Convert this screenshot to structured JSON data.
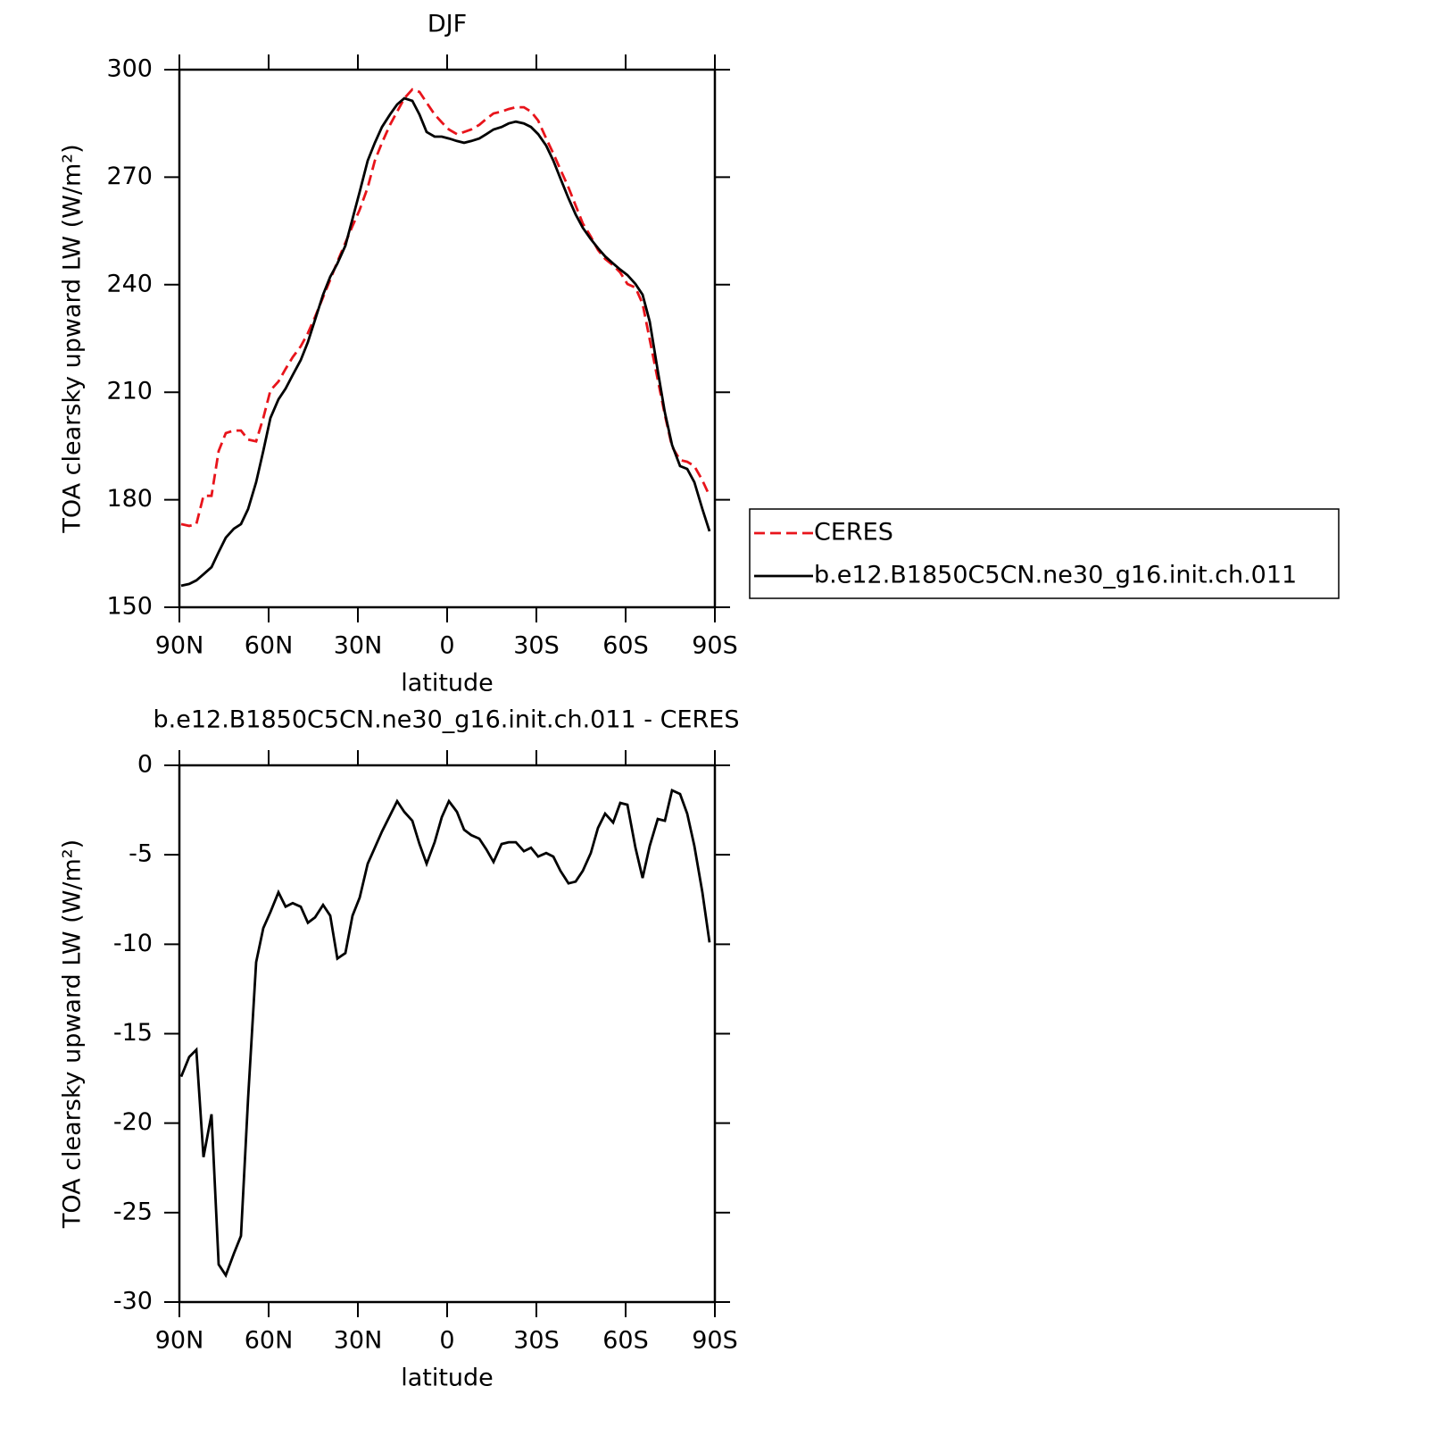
{
  "chart_data": [
    {
      "type": "line",
      "title": "DJF",
      "xlabel": "latitude",
      "ylabel": "TOA clearsky upward LW (W/m²)",
      "x": [
        89.4,
        86.7,
        84.3,
        81.9,
        79.2,
        76.8,
        74.4,
        71.7,
        69.3,
        66.9,
        64.2,
        61.8,
        59.4,
        56.7,
        54.3,
        51.9,
        49.2,
        46.8,
        44.4,
        41.7,
        39.3,
        36.9,
        34.2,
        31.8,
        29.4,
        26.7,
        24.3,
        21.9,
        19.2,
        16.8,
        14.4,
        11.7,
        9.3,
        6.9,
        4.2,
        1.8,
        -0.6,
        -3.3,
        -5.7,
        -8.1,
        -10.8,
        -13.2,
        -15.6,
        -18.3,
        -20.7,
        -23.1,
        -25.8,
        -28.2,
        -30.6,
        -33.3,
        -35.7,
        -38.1,
        -40.8,
        -43.2,
        -45.6,
        -48.3,
        -50.7,
        -53.1,
        -55.8,
        -58.2,
        -60.6,
        -63.3,
        -65.7,
        -68.1,
        -70.8,
        -73.2,
        -75.6,
        -78.3,
        -80.7,
        -83.1,
        -85.8,
        -88.2
      ],
      "series": [
        {
          "name": "CERES",
          "color": "#e8141b",
          "style": "dashed",
          "values": [
            173.2,
            172.7,
            173.2,
            181.1,
            181.1,
            193.6,
            198.6,
            199.3,
            199.3,
            196.8,
            196.3,
            202.8,
            210.5,
            213,
            216.5,
            219.8,
            222.8,
            226.5,
            231,
            236.5,
            241.4,
            246.4,
            251.7,
            256.4,
            260.9,
            267.1,
            274.6,
            279.6,
            284.6,
            288.3,
            292,
            294.5,
            293.8,
            290.8,
            287.5,
            285.3,
            283.3,
            282,
            282.6,
            283.3,
            284.6,
            286.3,
            287.8,
            288.3,
            289,
            289.5,
            289.5,
            288.3,
            285.8,
            280.8,
            276.6,
            272.1,
            267.1,
            262.1,
            257.1,
            253.4,
            249.7,
            247.2,
            245.4,
            243.4,
            240.2,
            239.2,
            234.7,
            224.7,
            213.5,
            203.6,
            194.8,
            191.1,
            190.6,
            189.4,
            185.4,
            181.1
          ]
        },
        {
          "name": "b.e12.B1850C5CN.ne30_g16.init.ch.011",
          "color": "#000000",
          "style": "solid",
          "values": [
            156,
            156.5,
            157.5,
            159.2,
            161.2,
            165.4,
            169.4,
            171.9,
            173.2,
            177.4,
            184.9,
            193.6,
            202.8,
            208,
            211,
            214.8,
            219,
            224,
            230.2,
            237.2,
            242.2,
            245.9,
            250.9,
            258.4,
            265.9,
            274.6,
            279.6,
            284,
            287.5,
            290.3,
            292,
            291.3,
            287.5,
            282.6,
            281.3,
            281.3,
            280.8,
            280.1,
            279.6,
            280.1,
            280.8,
            282,
            283.3,
            284,
            285,
            285.5,
            285,
            284,
            282,
            278.8,
            274.6,
            269.6,
            264.1,
            259.6,
            255.9,
            252.7,
            250.2,
            247.9,
            245.9,
            244.2,
            242.7,
            240.2,
            237.2,
            229.7,
            216,
            204.3,
            195.3,
            189.4,
            188.6,
            184.9,
            177.4,
            171.2
          ]
        }
      ],
      "xlim": [
        90,
        -90
      ],
      "xticks": [
        {
          "value": 90,
          "label": "90N"
        },
        {
          "value": 60,
          "label": "60N"
        },
        {
          "value": 30,
          "label": "30N"
        },
        0,
        {
          "value": -30,
          "label": "30S"
        },
        {
          "value": -60,
          "label": "60S"
        },
        {
          "value": -90,
          "label": "90S"
        }
      ],
      "ylim": [
        150,
        300
      ],
      "yticks": [
        150,
        180,
        210,
        240,
        270,
        300
      ],
      "legend": "right"
    },
    {
      "type": "line",
      "title": "b.e12.B1850C5CN.ne30_g16.init.ch.011 - CERES",
      "xlabel": "latitude",
      "ylabel": "TOA clearsky upward LW (W/m²)",
      "x": [
        89.4,
        86.7,
        84.3,
        81.9,
        79.2,
        76.8,
        74.4,
        71.7,
        69.3,
        66.9,
        64.2,
        61.8,
        59.4,
        56.7,
        54.3,
        51.9,
        49.2,
        46.8,
        44.4,
        41.7,
        39.3,
        36.9,
        34.2,
        31.8,
        29.4,
        26.7,
        24.3,
        21.9,
        19.2,
        16.8,
        14.4,
        11.7,
        9.3,
        6.9,
        4.2,
        1.8,
        -0.6,
        -3.3,
        -5.7,
        -8.1,
        -10.8,
        -13.2,
        -15.6,
        -18.3,
        -20.7,
        -23.1,
        -25.8,
        -28.2,
        -30.6,
        -33.3,
        -35.7,
        -38.1,
        -40.8,
        -43.2,
        -45.6,
        -48.3,
        -50.7,
        -53.1,
        -55.8,
        -58.2,
        -60.6,
        -63.3,
        -65.7,
        -68.1,
        -70.8,
        -73.2,
        -75.6,
        -78.3,
        -80.7,
        -83.1,
        -85.8,
        -88.2
      ],
      "values": [
        -17.4,
        -16.3,
        -15.9,
        -21.9,
        -19.5,
        -27.9,
        -28.5,
        -27.3,
        -26.3,
        -18.6,
        -11,
        -9.1,
        -8.2,
        -7.1,
        -7.9,
        -7.7,
        -7.9,
        -8.8,
        -8.5,
        -7.8,
        -8.4,
        -10.8,
        -10.5,
        -8.4,
        -7.4,
        -5.5,
        -4.6,
        -3.7,
        -2.8,
        -2,
        -2.6,
        -3.1,
        -4.4,
        -5.5,
        -4.3,
        -2.9,
        -2,
        -2.6,
        -3.6,
        -3.9,
        -4.1,
        -4.7,
        -5.4,
        -4.4,
        -4.3,
        -4.3,
        -4.8,
        -4.6,
        -5.1,
        -4.9,
        -5.1,
        -5.9,
        -6.6,
        -6.5,
        -5.9,
        -4.9,
        -3.5,
        -2.7,
        -3.2,
        -2.1,
        -2.2,
        -4.6,
        -6.3,
        -4.5,
        -3,
        -3.1,
        -1.4,
        -1.6,
        -2.7,
        -4.5,
        -7.1,
        -9.9
      ],
      "color": "#000000",
      "xlim": [
        90,
        -90
      ],
      "xticks": [
        {
          "value": 90,
          "label": "90N"
        },
        {
          "value": 60,
          "label": "60N"
        },
        {
          "value": 30,
          "label": "30N"
        },
        0,
        {
          "value": -30,
          "label": "30S"
        },
        {
          "value": -60,
          "label": "60S"
        },
        {
          "value": -90,
          "label": "90S"
        }
      ],
      "ylim": [
        -30,
        0
      ],
      "yticks": [
        -30,
        -25,
        -20,
        -15,
        -10,
        -5,
        0
      ]
    }
  ]
}
